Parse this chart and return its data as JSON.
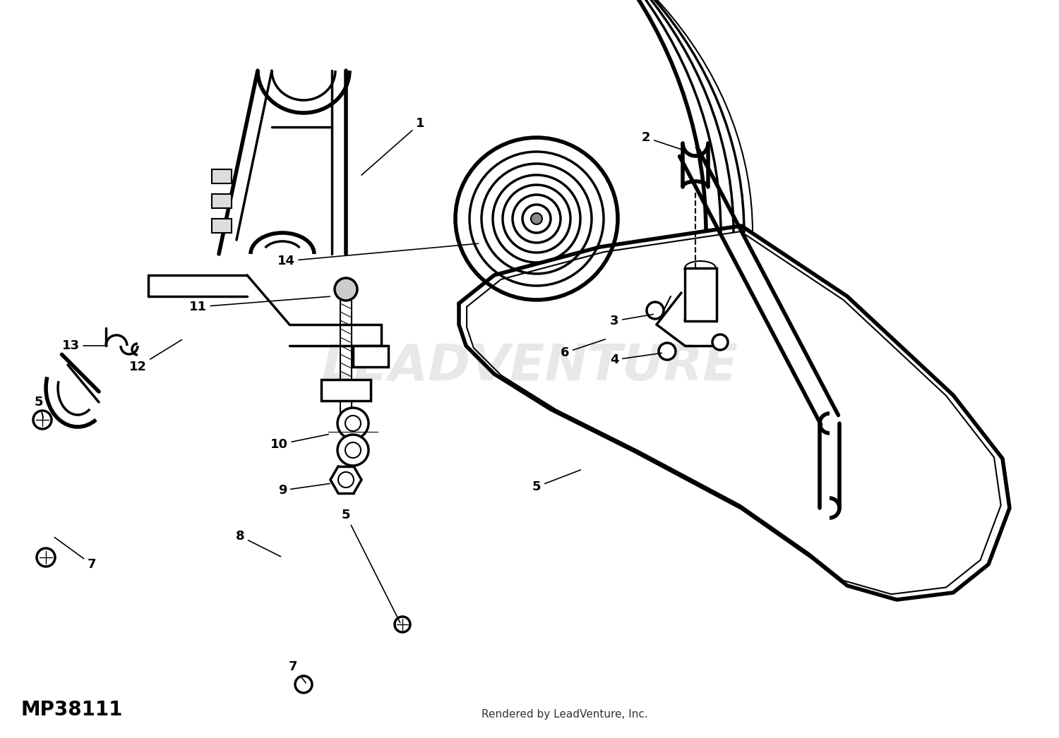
{
  "part_number": "MP38111",
  "watermark": "LEADVENTURE",
  "footer": "Rendered by LeadVenture, Inc.",
  "background_color": "#ffffff",
  "line_color": "#000000",
  "label_fontsize": 13,
  "figsize": [
    15.0,
    10.46
  ],
  "dpi": 100
}
